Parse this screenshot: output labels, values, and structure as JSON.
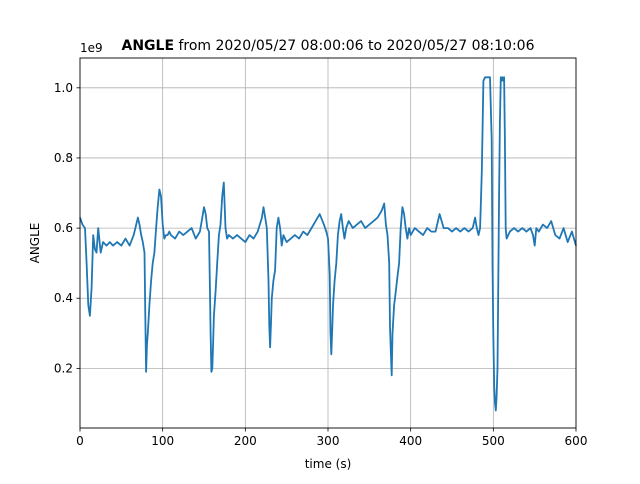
{
  "chart_data": {
    "type": "line",
    "title_bold": "ANGLE",
    "title_rest": " from 2020/05/27 08:00:06 to 2020/05/27 08:10:06",
    "xlabel": "time (s)",
    "ylabel": "ANGLE",
    "offset_label": "1e9",
    "xlim": [
      0,
      600
    ],
    "ylim": [
      0.03,
      1.085
    ],
    "xticks": [
      0,
      100,
      200,
      300,
      400,
      500,
      600
    ],
    "xtick_labels": [
      "0",
      "100",
      "200",
      "300",
      "400",
      "500",
      "600"
    ],
    "yticks": [
      0.2,
      0.4,
      0.6,
      0.8,
      1.0
    ],
    "ytick_labels": [
      "0.2",
      "0.4",
      "0.6",
      "0.8",
      "1.0"
    ],
    "grid": true,
    "series": [
      {
        "color": "#1f77b4",
        "x": [
          0,
          3,
          6,
          8,
          10,
          12,
          14,
          16,
          18,
          20,
          22,
          25,
          28,
          32,
          36,
          40,
          45,
          50,
          55,
          60,
          65,
          70,
          72,
          74,
          76,
          78,
          79,
          80,
          81,
          82,
          84,
          86,
          88,
          90,
          92,
          94,
          96,
          98,
          100,
          102,
          104,
          106,
          108,
          110,
          115,
          120,
          125,
          130,
          135,
          140,
          145,
          148,
          150,
          152,
          154,
          156,
          157,
          158,
          159,
          160,
          161,
          162,
          164,
          166,
          168,
          170,
          172,
          174,
          176,
          178,
          180,
          185,
          190,
          195,
          200,
          205,
          210,
          215,
          220,
          222,
          224,
          226,
          228,
          229,
          230,
          231,
          232,
          234,
          236,
          238,
          240,
          242,
          244,
          246,
          248,
          250,
          255,
          260,
          265,
          270,
          275,
          280,
          285,
          290,
          295,
          298,
          300,
          302,
          303,
          304,
          305,
          306,
          308,
          310,
          312,
          314,
          316,
          318,
          320,
          322,
          325,
          330,
          335,
          340,
          345,
          350,
          355,
          360,
          365,
          368,
          370,
          372,
          374,
          375,
          376,
          377,
          378,
          380,
          382,
          384,
          386,
          388,
          390,
          392,
          394,
          396,
          398,
          400,
          405,
          410,
          415,
          420,
          425,
          430,
          435,
          440,
          445,
          450,
          455,
          460,
          465,
          470,
          475,
          478,
          480,
          482,
          484,
          486,
          488,
          490,
          492,
          494,
          496,
          498,
          499,
          500,
          501,
          502,
          503,
          504,
          505,
          506,
          507,
          508,
          509,
          510,
          511,
          512,
          513,
          514,
          515,
          516,
          518,
          520,
          525,
          530,
          535,
          540,
          545,
          548,
          550,
          552,
          555,
          560,
          565,
          570,
          575,
          580,
          585,
          590,
          595,
          600
        ],
        "y": [
          0.63,
          0.61,
          0.6,
          0.5,
          0.38,
          0.35,
          0.43,
          0.58,
          0.54,
          0.53,
          0.6,
          0.53,
          0.56,
          0.55,
          0.56,
          0.55,
          0.56,
          0.55,
          0.57,
          0.55,
          0.58,
          0.63,
          0.61,
          0.58,
          0.56,
          0.53,
          0.35,
          0.19,
          0.27,
          0.3,
          0.38,
          0.45,
          0.5,
          0.53,
          0.6,
          0.66,
          0.71,
          0.69,
          0.61,
          0.57,
          0.58,
          0.58,
          0.59,
          0.58,
          0.57,
          0.59,
          0.58,
          0.59,
          0.6,
          0.57,
          0.59,
          0.63,
          0.66,
          0.64,
          0.6,
          0.59,
          0.45,
          0.3,
          0.19,
          0.2,
          0.27,
          0.35,
          0.42,
          0.5,
          0.58,
          0.61,
          0.69,
          0.73,
          0.6,
          0.57,
          0.58,
          0.57,
          0.58,
          0.57,
          0.56,
          0.58,
          0.57,
          0.59,
          0.63,
          0.66,
          0.63,
          0.6,
          0.45,
          0.32,
          0.26,
          0.33,
          0.4,
          0.45,
          0.48,
          0.6,
          0.63,
          0.6,
          0.55,
          0.58,
          0.57,
          0.56,
          0.57,
          0.58,
          0.57,
          0.59,
          0.58,
          0.6,
          0.62,
          0.64,
          0.61,
          0.59,
          0.57,
          0.47,
          0.3,
          0.24,
          0.3,
          0.38,
          0.45,
          0.5,
          0.58,
          0.62,
          0.64,
          0.6,
          0.57,
          0.6,
          0.62,
          0.6,
          0.61,
          0.62,
          0.6,
          0.61,
          0.62,
          0.63,
          0.65,
          0.67,
          0.61,
          0.58,
          0.5,
          0.32,
          0.25,
          0.18,
          0.3,
          0.38,
          0.42,
          0.46,
          0.5,
          0.6,
          0.66,
          0.64,
          0.6,
          0.57,
          0.6,
          0.58,
          0.6,
          0.59,
          0.58,
          0.6,
          0.59,
          0.59,
          0.64,
          0.6,
          0.6,
          0.59,
          0.6,
          0.59,
          0.6,
          0.59,
          0.6,
          0.63,
          0.6,
          0.58,
          0.6,
          0.76,
          1.02,
          1.03,
          1.03,
          1.03,
          1.03,
          0.85,
          0.5,
          0.3,
          0.15,
          0.1,
          0.08,
          0.12,
          0.2,
          0.45,
          0.7,
          0.9,
          1.03,
          1.02,
          1.03,
          1.02,
          1.03,
          0.85,
          0.6,
          0.57,
          0.58,
          0.59,
          0.6,
          0.59,
          0.6,
          0.59,
          0.6,
          0.58,
          0.55,
          0.6,
          0.59,
          0.61,
          0.6,
          0.62,
          0.58,
          0.57,
          0.6,
          0.56,
          0.59,
          0.55
        ]
      }
    ]
  }
}
